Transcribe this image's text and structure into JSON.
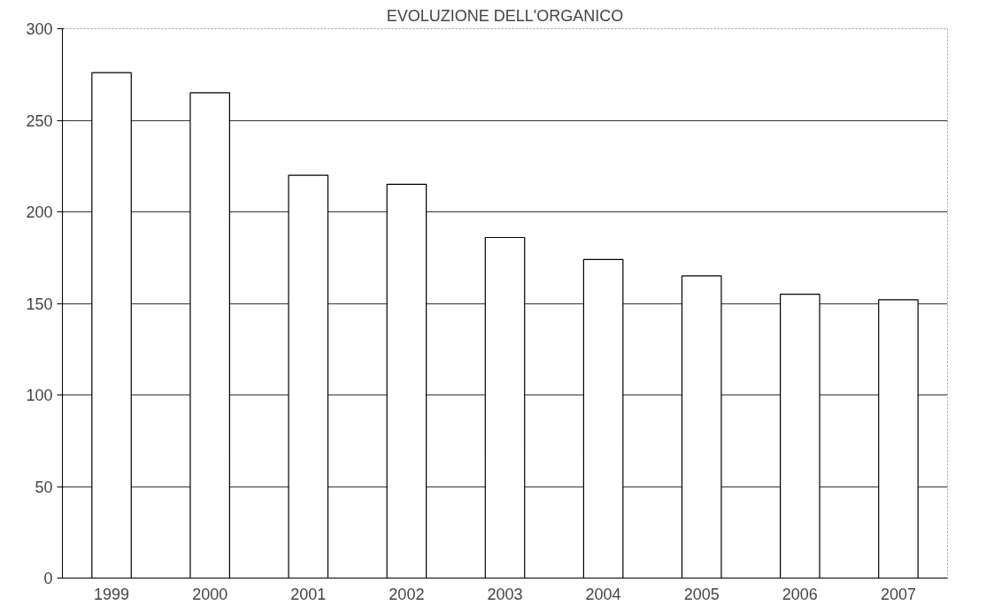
{
  "chart_data": {
    "type": "bar",
    "title": "EVOLUZIONE DELL'ORGANICO",
    "categories": [
      "1999",
      "2000",
      "2001",
      "2002",
      "2003",
      "2004",
      "2005",
      "2006",
      "2007"
    ],
    "values": [
      276,
      265,
      220,
      215,
      186,
      174,
      165,
      155,
      152
    ],
    "color": "#ffffff",
    "ylim": [
      0,
      300
    ],
    "yticks": [
      0,
      50,
      100,
      150,
      200,
      250,
      300
    ],
    "grid": "y"
  }
}
